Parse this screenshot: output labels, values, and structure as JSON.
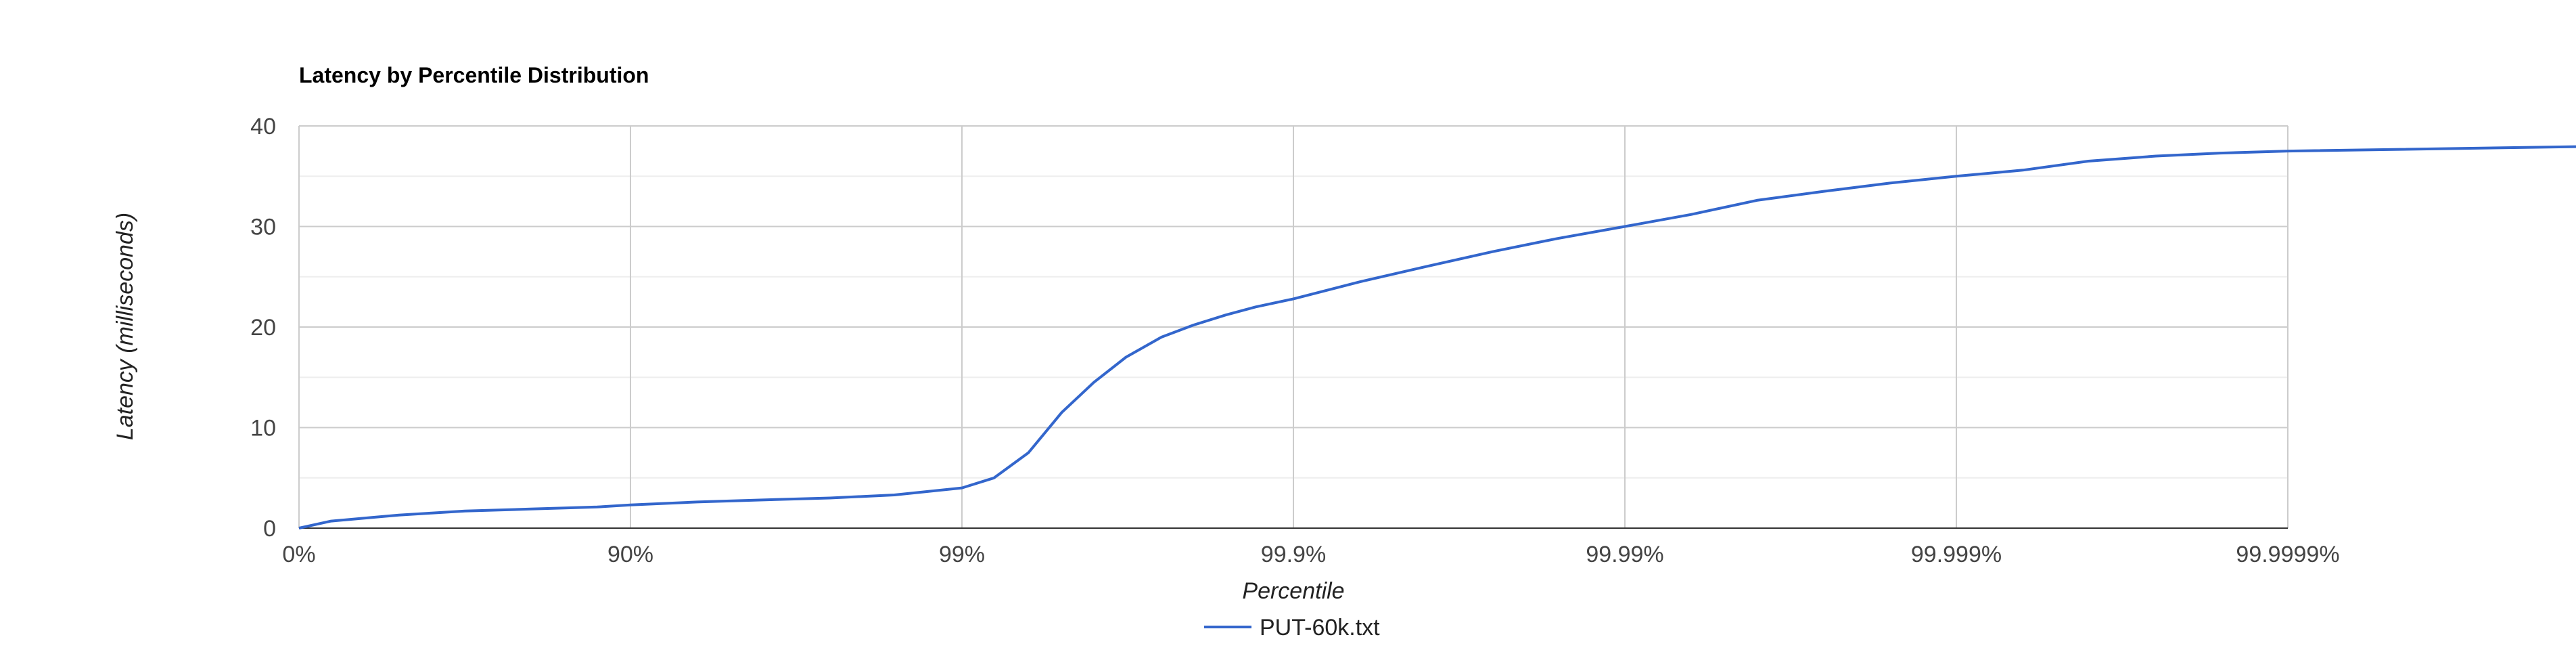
{
  "chart_data": {
    "type": "line",
    "title": "Latency by Percentile Distribution",
    "xlabel": "Percentile",
    "ylabel": "Latency (milliseconds)",
    "x_scale": "log-percentile",
    "x_tick_labels": [
      "0%",
      "90%",
      "99%",
      "99.9%",
      "99.99%",
      "99.999%",
      "99.9999%"
    ],
    "x_tick_values": [
      0,
      90,
      99,
      99.9,
      99.99,
      99.999,
      99.9999
    ],
    "y_ticks": [
      0,
      10,
      20,
      30,
      40
    ],
    "ylim": [
      0,
      40
    ],
    "grid": true,
    "legend_position": "bottom",
    "series": [
      {
        "name": "PUT-60k.txt",
        "color": "#3366cc",
        "x": [
          0,
          20,
          36.9,
          50,
          60.2,
          68.4,
          80,
          84.2,
          87.4,
          90,
          93.7,
          96.0,
          97.5,
          98.4,
          99.0,
          99.2,
          99.37,
          99.5,
          99.6,
          99.68,
          99.75,
          99.8,
          99.84,
          99.87,
          99.9,
          99.937,
          99.96,
          99.975,
          99.984,
          99.99,
          99.9937,
          99.996,
          99.9975,
          99.9984,
          99.999,
          99.99937,
          99.9996,
          99.99975,
          99.99984,
          99.9999,
          99.99999,
          99.999997
        ],
        "y": [
          0,
          0.7,
          1.0,
          1.3,
          1.5,
          1.7,
          1.9,
          2.0,
          2.1,
          2.3,
          2.6,
          2.8,
          3.0,
          3.3,
          4.0,
          5.0,
          7.5,
          11.5,
          14.5,
          17.0,
          19.0,
          20.2,
          21.2,
          22.0,
          22.8,
          24.5,
          26.0,
          27.5,
          28.8,
          30.0,
          31.2,
          32.6,
          33.5,
          34.3,
          35.0,
          35.6,
          36.5,
          37.0,
          37.3,
          37.5,
          38.0,
          38.3
        ]
      }
    ]
  }
}
